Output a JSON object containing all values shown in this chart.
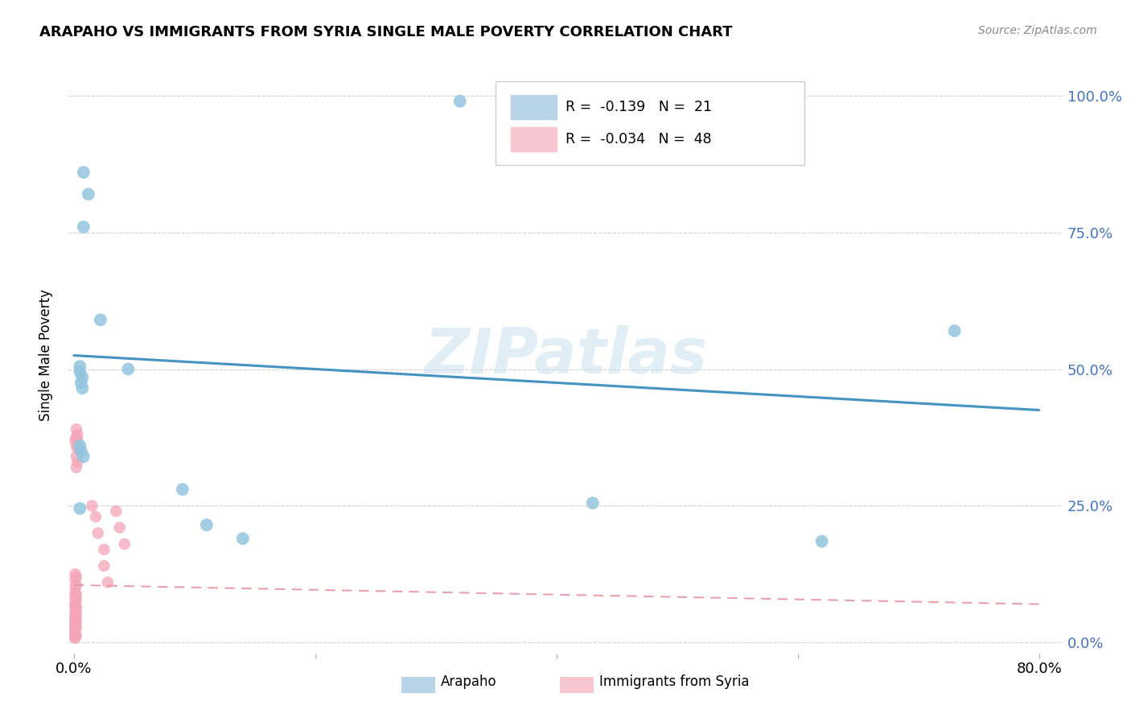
{
  "title": "ARAPAHO VS IMMIGRANTS FROM SYRIA SINGLE MALE POVERTY CORRELATION CHART",
  "source": "Source: ZipAtlas.com",
  "ylabel": "Single Male Poverty",
  "xlim": [
    -0.005,
    0.82
  ],
  "ylim": [
    -0.02,
    1.07
  ],
  "yticks": [
    0.0,
    0.25,
    0.5,
    0.75,
    1.0
  ],
  "ytick_labels": [
    "0.0%",
    "25.0%",
    "50.0%",
    "75.0%",
    "100.0%"
  ],
  "xticks": [
    0.0,
    0.2,
    0.4,
    0.6,
    0.8
  ],
  "xtick_labels": [
    "0.0%",
    "",
    "",
    "",
    "80.0%"
  ],
  "legend_r_blue": "-0.139",
  "legend_n_blue": "21",
  "legend_r_pink": "-0.034",
  "legend_n_pink": "48",
  "blue_scatter_color": "#92c5de",
  "pink_scatter_color": "#f4a6b8",
  "blue_line_color": "#4393c3",
  "pink_line_color": "#e8909f",
  "blue_legend_color": "#b8d4e8",
  "pink_legend_color": "#f7c6d0",
  "watermark": "ZIPatlas",
  "arapaho_x": [
    0.008,
    0.012,
    0.008,
    0.022,
    0.045,
    0.005,
    0.005,
    0.007,
    0.006,
    0.007,
    0.005,
    0.006,
    0.09,
    0.005,
    0.11,
    0.14,
    0.73,
    0.62,
    0.008,
    0.43,
    0.32
  ],
  "arapaho_y": [
    0.86,
    0.82,
    0.76,
    0.59,
    0.5,
    0.505,
    0.495,
    0.485,
    0.475,
    0.465,
    0.36,
    0.35,
    0.28,
    0.245,
    0.215,
    0.19,
    0.57,
    0.185,
    0.34,
    0.255,
    0.99
  ],
  "syria_x": [
    0.002,
    0.003,
    0.002,
    0.001,
    0.002,
    0.001,
    0.002,
    0.001,
    0.002,
    0.001,
    0.001,
    0.002,
    0.001,
    0.002,
    0.001,
    0.001,
    0.002,
    0.001,
    0.002,
    0.001,
    0.002,
    0.001,
    0.001,
    0.002,
    0.001,
    0.001,
    0.002,
    0.001,
    0.001,
    0.001,
    0.001,
    0.002,
    0.001,
    0.001,
    0.015,
    0.018,
    0.02,
    0.025,
    0.025,
    0.028,
    0.035,
    0.038,
    0.042,
    0.003,
    0.003,
    0.002,
    0.003,
    0.002
  ],
  "syria_y": [
    0.39,
    0.38,
    0.375,
    0.37,
    0.36,
    0.125,
    0.12,
    0.115,
    0.105,
    0.1,
    0.09,
    0.088,
    0.082,
    0.078,
    0.072,
    0.068,
    0.065,
    0.062,
    0.058,
    0.052,
    0.048,
    0.045,
    0.042,
    0.038,
    0.035,
    0.032,
    0.028,
    0.025,
    0.022,
    0.018,
    0.015,
    0.012,
    0.01,
    0.008,
    0.25,
    0.23,
    0.2,
    0.17,
    0.14,
    0.11,
    0.24,
    0.21,
    0.18,
    0.37,
    0.355,
    0.34,
    0.33,
    0.32
  ],
  "blue_line_x0": 0.0,
  "blue_line_y0": 0.525,
  "blue_line_x1": 0.8,
  "blue_line_y1": 0.425,
  "pink_line_x0": 0.0,
  "pink_line_y0": 0.105,
  "pink_line_x1": 0.8,
  "pink_line_y1": 0.07
}
